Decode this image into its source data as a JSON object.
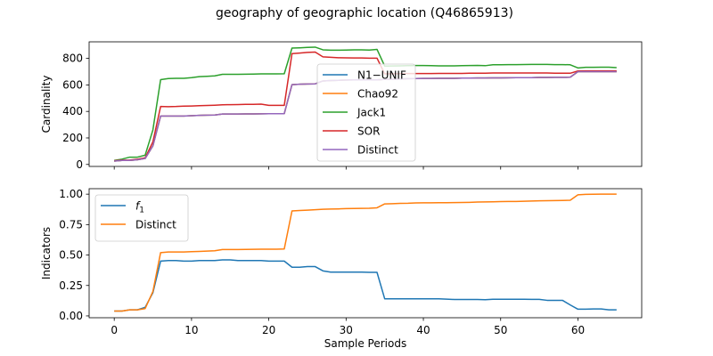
{
  "title": "geography of geographic location (Q46865913)",
  "chart_data": [
    {
      "type": "line",
      "ylabel": "Cardinality",
      "xlabel": "",
      "xlim": [
        -3.25,
        68.25
      ],
      "ylim": [
        -15,
        925
      ],
      "yticks": [
        0,
        200,
        400,
        600,
        800
      ],
      "xticks": [
        0,
        10,
        20,
        30,
        40,
        50,
        60
      ],
      "show_xticklabels": false,
      "legend": "center",
      "series": [
        {
          "name": "N1−UNIF",
          "color": "#1f77b4",
          "values": [
            25,
            30,
            30,
            35,
            45,
            140,
            365,
            365,
            365,
            365,
            368,
            370,
            372,
            373,
            380,
            380,
            380,
            381,
            381,
            382,
            383,
            383,
            383,
            602,
            605,
            607,
            608,
            630,
            633,
            635,
            637,
            638,
            638,
            639,
            638,
            642,
            643,
            645,
            647,
            648,
            649,
            649,
            650,
            650,
            650,
            651,
            651,
            652,
            652,
            653,
            653,
            654,
            655,
            655,
            655,
            656,
            656,
            657,
            657,
            658,
            700,
            700,
            700,
            700,
            700,
            700
          ]
        },
        {
          "name": "Chao92",
          "color": "#ff7f0e",
          "values": [
            25,
            30,
            30,
            35,
            45,
            140,
            365,
            365,
            365,
            365,
            368,
            370,
            372,
            373,
            380,
            380,
            380,
            381,
            381,
            382,
            383,
            383,
            383,
            602,
            605,
            607,
            608,
            630,
            633,
            635,
            637,
            638,
            638,
            639,
            638,
            642,
            643,
            645,
            647,
            648,
            649,
            649,
            650,
            650,
            650,
            651,
            651,
            652,
            652,
            653,
            653,
            654,
            655,
            655,
            655,
            656,
            656,
            657,
            657,
            658,
            700,
            700,
            700,
            700,
            700,
            700
          ]
        },
        {
          "name": "Jack1",
          "color": "#2ca02c",
          "values": [
            30,
            40,
            55,
            55,
            70,
            260,
            640,
            648,
            650,
            650,
            655,
            662,
            665,
            668,
            680,
            680,
            680,
            681,
            682,
            683,
            683,
            683,
            684,
            878,
            880,
            883,
            885,
            865,
            862,
            862,
            863,
            865,
            865,
            863,
            868,
            742,
            743,
            744,
            745,
            746,
            746,
            745,
            744,
            744,
            744,
            745,
            746,
            747,
            745,
            752,
            752,
            753,
            753,
            754,
            755,
            755,
            755,
            753,
            753,
            752,
            728,
            733,
            733,
            734,
            734,
            730
          ]
        },
        {
          "name": "SOR",
          "color": "#d62728",
          "values": [
            28,
            33,
            33,
            40,
            50,
            170,
            437,
            436,
            437,
            440,
            441,
            443,
            445,
            447,
            450,
            451,
            452,
            453,
            453,
            455,
            446,
            446,
            446,
            836,
            840,
            845,
            848,
            812,
            808,
            805,
            804,
            803,
            803,
            802,
            802,
            683,
            684,
            685,
            686,
            686,
            686,
            686,
            687,
            687,
            687,
            687,
            688,
            688,
            688,
            690,
            690,
            690,
            690,
            690,
            690,
            690,
            690,
            688,
            688,
            688,
            705,
            706,
            706,
            706,
            706,
            706
          ]
        },
        {
          "name": "Distinct",
          "color": "#9467bd",
          "values": [
            25,
            30,
            30,
            35,
            45,
            140,
            365,
            365,
            365,
            365,
            368,
            370,
            372,
            373,
            380,
            380,
            380,
            381,
            381,
            382,
            383,
            383,
            383,
            602,
            605,
            607,
            608,
            630,
            633,
            635,
            637,
            638,
            638,
            639,
            638,
            642,
            643,
            645,
            647,
            648,
            649,
            649,
            650,
            650,
            650,
            651,
            651,
            652,
            652,
            653,
            653,
            654,
            655,
            655,
            655,
            656,
            656,
            657,
            657,
            658,
            700,
            700,
            700,
            700,
            700,
            700
          ]
        }
      ]
    },
    {
      "type": "line",
      "ylabel": "Indicators",
      "xlabel": "Sample Periods",
      "xlim": [
        -3.25,
        68.25
      ],
      "ylim": [
        -0.015,
        1.045
      ],
      "yticks": [
        0.0,
        0.25,
        0.5,
        0.75,
        1.0
      ],
      "ytick_labels": [
        "0.00",
        "0.25",
        "0.50",
        "0.75",
        "1.00"
      ],
      "xticks": [
        0,
        10,
        20,
        30,
        40,
        50,
        60
      ],
      "xtick_labels": [
        "0",
        "10",
        "20",
        "30",
        "40",
        "50",
        "60"
      ],
      "show_xticklabels": true,
      "legend": "upper left",
      "series": [
        {
          "name": "f",
          "name_sub": "1",
          "color": "#1f77b4",
          "values": [
            0.04,
            0.04,
            0.05,
            0.05,
            0.07,
            0.19,
            0.45,
            0.455,
            0.455,
            0.45,
            0.45,
            0.455,
            0.455,
            0.455,
            0.46,
            0.46,
            0.455,
            0.455,
            0.455,
            0.455,
            0.45,
            0.45,
            0.45,
            0.4,
            0.4,
            0.405,
            0.405,
            0.37,
            0.36,
            0.36,
            0.36,
            0.36,
            0.36,
            0.358,
            0.358,
            0.14,
            0.14,
            0.14,
            0.14,
            0.14,
            0.14,
            0.14,
            0.14,
            0.138,
            0.135,
            0.135,
            0.135,
            0.135,
            0.133,
            0.137,
            0.137,
            0.137,
            0.137,
            0.137,
            0.136,
            0.136,
            0.128,
            0.128,
            0.128,
            0.09,
            0.055,
            0.055,
            0.057,
            0.057,
            0.05,
            0.05
          ]
        },
        {
          "name": "Distinct",
          "color": "#ff7f0e",
          "values": [
            0.04,
            0.04,
            0.05,
            0.05,
            0.06,
            0.2,
            0.52,
            0.525,
            0.525,
            0.525,
            0.528,
            0.53,
            0.532,
            0.535,
            0.545,
            0.545,
            0.545,
            0.546,
            0.547,
            0.548,
            0.548,
            0.548,
            0.55,
            0.862,
            0.866,
            0.869,
            0.872,
            0.876,
            0.878,
            0.879,
            0.881,
            0.882,
            0.883,
            0.884,
            0.888,
            0.92,
            0.922,
            0.924,
            0.925,
            0.928,
            0.929,
            0.929,
            0.93,
            0.93,
            0.931,
            0.932,
            0.933,
            0.935,
            0.936,
            0.937,
            0.939,
            0.94,
            0.94,
            0.942,
            0.944,
            0.945,
            0.946,
            0.947,
            0.948,
            0.95,
            0.995,
            0.998,
            0.999,
            1.0,
            1.0,
            1.0
          ]
        }
      ]
    }
  ]
}
